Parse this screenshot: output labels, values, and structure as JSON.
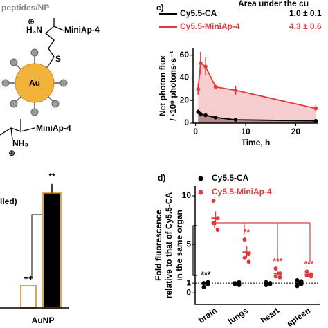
{
  "diagram": {
    "title": "peptides/NP",
    "core": "Au",
    "linker": "S",
    "amine_top": "H₃N",
    "charge": "⊕",
    "peptide_top": "MiniAp-4",
    "peptide_bottom": "MiniAp-4",
    "amine_bottom": "NH₃",
    "charge_bottom": "⊕"
  },
  "chart_data": [
    {
      "type": "line",
      "panel": "c)",
      "legend_title": "Area under the cu",
      "x": [
        0.5,
        1,
        2,
        4,
        8,
        24
      ],
      "series": [
        {
          "name": "Cy5.5-CA",
          "auc": "1.0 ± 0.1",
          "color": "#000000",
          "values": [
            10,
            8,
            7,
            5,
            3,
            2
          ],
          "errors": [
            2,
            2,
            1,
            1,
            1,
            1
          ]
        },
        {
          "name": "Cy5.5-MiniAp-4",
          "auc": "4.3 ± 0.6",
          "color": "#e03a3e",
          "values": [
            30,
            53,
            50,
            32,
            29,
            13
          ],
          "errors": [
            5,
            10,
            8,
            2,
            4,
            3
          ]
        }
      ],
      "xlabel": "Time, h",
      "ylabel": [
        "Net photon flux",
        "/ ·10⁸ photons·s⁻¹"
      ],
      "xlim": [
        -0.5,
        24.5
      ],
      "xticks": [
        0,
        10,
        20
      ],
      "ylim": [
        0,
        66
      ],
      "yticks": [
        0,
        20,
        40,
        60
      ]
    },
    {
      "type": "scatter",
      "panel": "d)",
      "categories": [
        "brain",
        "lungs",
        "heart",
        "spleen"
      ],
      "series": [
        {
          "name": "Cy5.5-CA",
          "color": "#000000",
          "values": [
            0.9,
            0.95,
            0.95,
            1.0
          ],
          "errors": [
            0.2,
            0.1,
            0.1,
            0.25
          ],
          "points": [
            [
              0.6,
              1.1,
              1.0,
              0.9
            ],
            [
              0.9,
              1.1,
              1.0,
              0.8
            ],
            [
              0.8,
              1.0,
              1.1,
              0.9
            ],
            [
              0.7,
              1.2,
              1.3,
              0.9
            ]
          ]
        },
        {
          "name": "Cy5.5-MiniAp-4",
          "color": "#e03a3e",
          "values": [
            7.7,
            4.2,
            2.0,
            1.9
          ],
          "errors": [
            0.7,
            0.6,
            0.2,
            0.1
          ],
          "points": [
            [
              9.5,
              7.7,
              7.2,
              6.5
            ],
            [
              5.5,
              4.0,
              3.6,
              3.2
            ],
            [
              2.5,
              2.0,
              1.7,
              1.6
            ],
            [
              2.2,
              1.9,
              1.8,
              1.7
            ]
          ]
        }
      ],
      "annotations": [
        {
          "text": "***",
          "category": 0,
          "series": 0
        },
        {
          "text": "**",
          "category": 1,
          "series": 1
        },
        {
          "text": "***",
          "category": 2,
          "series": 1
        },
        {
          "text": "***",
          "category": 3,
          "series": 1
        }
      ],
      "reference_line": 1,
      "ylabel": [
        "Fold fluorescence",
        "relative to that of Cy5.5-CA",
        "in the same organ"
      ],
      "ylim": [
        -1.2,
        11
      ],
      "yticks": [
        0,
        1,
        5,
        10
      ]
    },
    {
      "type": "bar",
      "ylabel_fragment": "lled)",
      "group": "AuNP",
      "values": [
        1.0,
        5.2
      ],
      "errors": [
        0,
        0.4
      ],
      "colors": [
        "#ffffff",
        "#000000"
      ],
      "edge_color": "#e8a33a",
      "annotations": [
        "++",
        "**"
      ],
      "ylim": [
        0,
        6
      ]
    }
  ]
}
